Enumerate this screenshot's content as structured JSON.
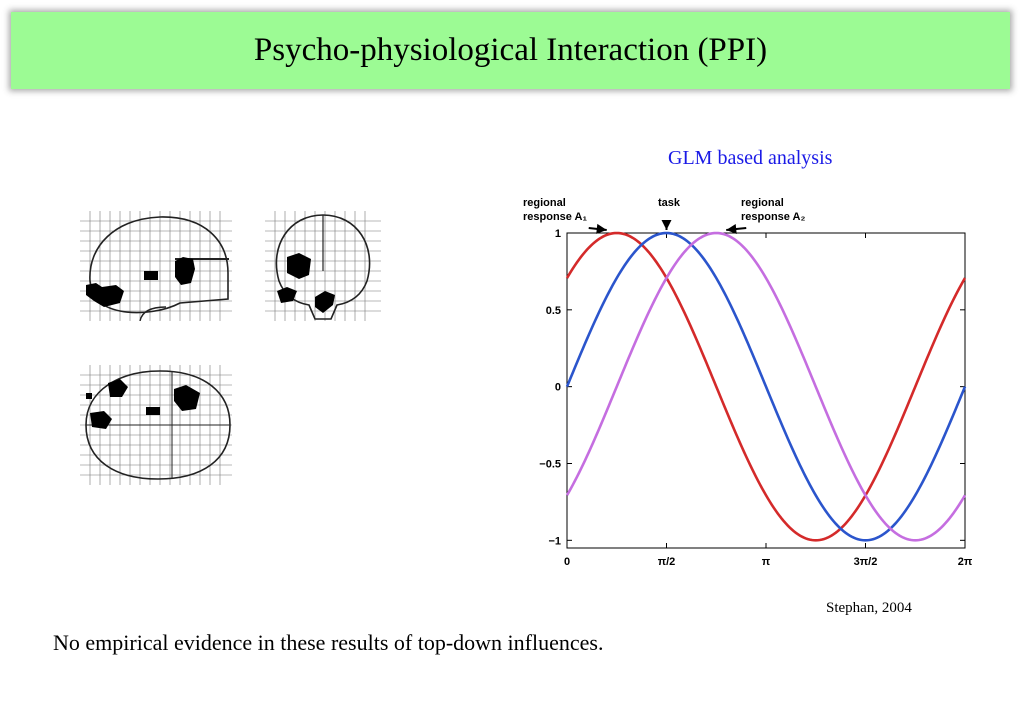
{
  "slide": {
    "title": "Psycho-physiological Interaction (PPI)",
    "subtitle": "GLM based analysis",
    "citation": "Stephan, 2004",
    "footnote": "No empirical evidence in these results of top-down influences."
  },
  "colors": {
    "title_background": "#9cfb94",
    "subtitle_text": "#1a1ae6",
    "series_regional_A1": "#d42a2a",
    "series_task": "#2b55cc",
    "series_regional_A2": "#c56ee0"
  },
  "chart_data": {
    "type": "line",
    "xlim": [
      0,
      6.2832
    ],
    "ylim": [
      -1.05,
      1.0
    ],
    "grid": false,
    "x_ticks": [
      {
        "value": 0,
        "label": "0"
      },
      {
        "value": 1.5708,
        "label": "π/2"
      },
      {
        "value": 3.1416,
        "label": "π"
      },
      {
        "value": 4.7124,
        "label": "3π/2"
      },
      {
        "value": 6.2832,
        "label": "2π"
      }
    ],
    "y_ticks": [
      {
        "value": 1,
        "label": "1"
      },
      {
        "value": 0.5,
        "label": "0.5"
      },
      {
        "value": 0,
        "label": "0"
      },
      {
        "value": -0.5,
        "label": "−0.5"
      },
      {
        "value": -1,
        "label": "−1"
      }
    ],
    "series": [
      {
        "key": "regional_A1",
        "function": "sin",
        "phase": 0.785,
        "color": "#d42a2a"
      },
      {
        "key": "task",
        "function": "sin",
        "phase": 0,
        "color": "#2b55cc"
      },
      {
        "key": "regional_A2",
        "function": "sin",
        "phase": -0.785,
        "color": "#c56ee0"
      }
    ],
    "annotations": [
      {
        "key": "regional_A1",
        "line1": "regional",
        "line2": "response A₁",
        "peak_x": 0.785
      },
      {
        "key": "task",
        "line1": "task",
        "line2": "",
        "peak_x": 1.5708
      },
      {
        "key": "regional_A2",
        "line1": "regional",
        "line2": "response A₂",
        "peak_x": 2.356
      }
    ]
  }
}
